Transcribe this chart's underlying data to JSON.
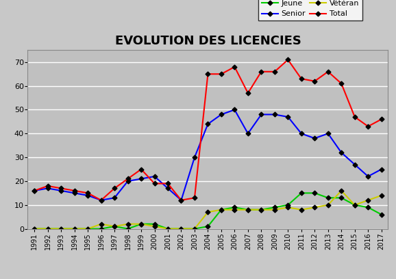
{
  "title": "EVOLUTION DES LICENCIES",
  "years": [
    1991,
    1992,
    1993,
    1994,
    1995,
    1996,
    1997,
    1998,
    1999,
    2000,
    2001,
    2002,
    2003,
    2004,
    2005,
    2006,
    2007,
    2008,
    2009,
    2010,
    2011,
    2012,
    2013,
    2014,
    2015,
    2016,
    2017
  ],
  "jeune": [
    0,
    0,
    0,
    0,
    0,
    0,
    1,
    0,
    2,
    2,
    0,
    0,
    0,
    1,
    8,
    9,
    8,
    8,
    9,
    10,
    15,
    15,
    13,
    13,
    10,
    9,
    6
  ],
  "senior": [
    16,
    17,
    16,
    15,
    14,
    12,
    13,
    20,
    21,
    22,
    17,
    12,
    30,
    44,
    48,
    50,
    40,
    48,
    48,
    47,
    40,
    38,
    40,
    32,
    27,
    22,
    25
  ],
  "veteran": [
    0,
    0,
    0,
    0,
    0,
    2,
    1,
    2,
    2,
    1,
    0,
    0,
    0,
    7,
    8,
    8,
    8,
    8,
    8,
    9,
    8,
    9,
    10,
    16,
    10,
    12,
    14
  ],
  "total": [
    16,
    18,
    17,
    16,
    15,
    12,
    17,
    21,
    25,
    19,
    19,
    12,
    13,
    65,
    65,
    68,
    57,
    66,
    66,
    71,
    63,
    62,
    66,
    61,
    47,
    43,
    46
  ],
  "jeune_color": "#00cc00",
  "senior_color": "#0000ff",
  "veteran_color": "#cccc00",
  "total_color": "#ff0000",
  "fig_bg_color": "#c8c8c8",
  "plot_bg_color": "#c0c0c0",
  "ylim": [
    0,
    75
  ],
  "yticks": [
    0,
    10,
    20,
    30,
    40,
    50,
    60,
    70
  ],
  "grid_color": "#ffffff",
  "legend_labels": [
    "Jeune",
    "Senior",
    "Vétéran",
    "Total"
  ]
}
